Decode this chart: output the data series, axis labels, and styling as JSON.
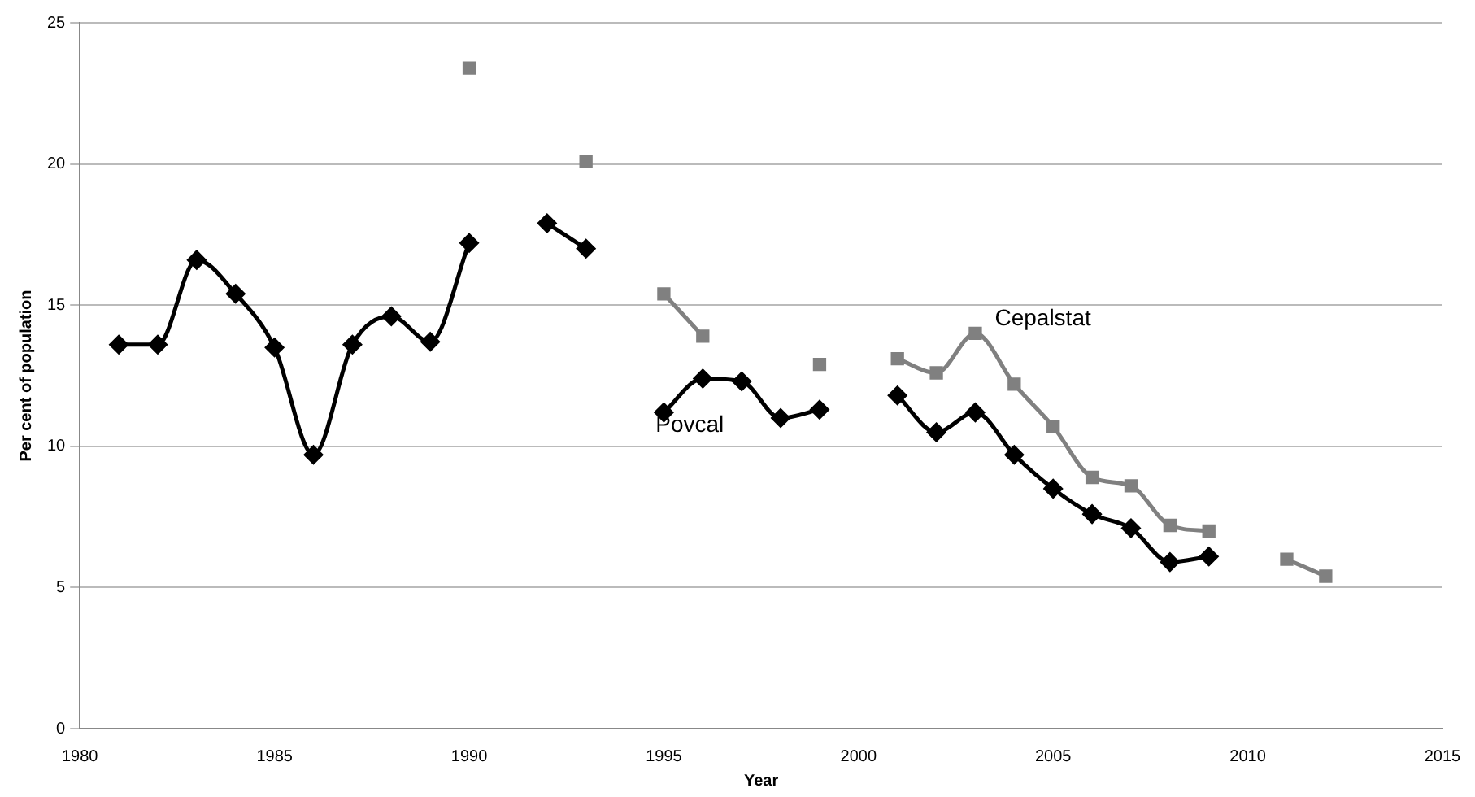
{
  "chart_data": {
    "type": "line",
    "xlabel": "Year",
    "ylabel": "Per cent of population",
    "xlim": [
      1980,
      2015
    ],
    "xticks": [
      1980,
      1985,
      1990,
      1995,
      2000,
      2005,
      2010,
      2015
    ],
    "ylim": [
      0,
      25
    ],
    "yticks": [
      0,
      5,
      10,
      15,
      20,
      25
    ],
    "grid": "y",
    "legend": false,
    "series": [
      {
        "name": "Povcal",
        "color": "#000000",
        "marker": "diamond",
        "x": [
          1981,
          1982,
          1983,
          1984,
          1985,
          1986,
          1987,
          1988,
          1989,
          1990,
          1991,
          1992,
          1993,
          1994,
          1995,
          1996,
          1997,
          1998,
          1999,
          2000,
          2001,
          2002,
          2003,
          2004,
          2005,
          2006,
          2007,
          2008,
          2009
        ],
        "values": [
          13.6,
          13.6,
          16.6,
          15.4,
          13.5,
          9.7,
          13.6,
          14.6,
          13.7,
          17.2,
          null,
          17.9,
          17.0,
          null,
          11.2,
          12.4,
          12.3,
          11.0,
          11.3,
          null,
          11.8,
          10.5,
          11.2,
          9.7,
          8.5,
          7.6,
          7.1,
          5.9,
          6.1
        ]
      },
      {
        "name": "Cepalstat",
        "color": "#808080",
        "marker": "square",
        "x": [
          1990,
          1991,
          1993,
          1994,
          1995,
          1996,
          1997,
          1999,
          2000,
          2001,
          2002,
          2003,
          2004,
          2005,
          2006,
          2007,
          2008,
          2009,
          2010,
          2011,
          2012
        ],
        "values": [
          23.4,
          null,
          20.1,
          null,
          15.4,
          13.9,
          null,
          12.9,
          null,
          13.1,
          12.6,
          14.0,
          12.2,
          10.7,
          8.9,
          8.6,
          7.2,
          7.0,
          null,
          6.0,
          5.4
        ]
      }
    ]
  }
}
